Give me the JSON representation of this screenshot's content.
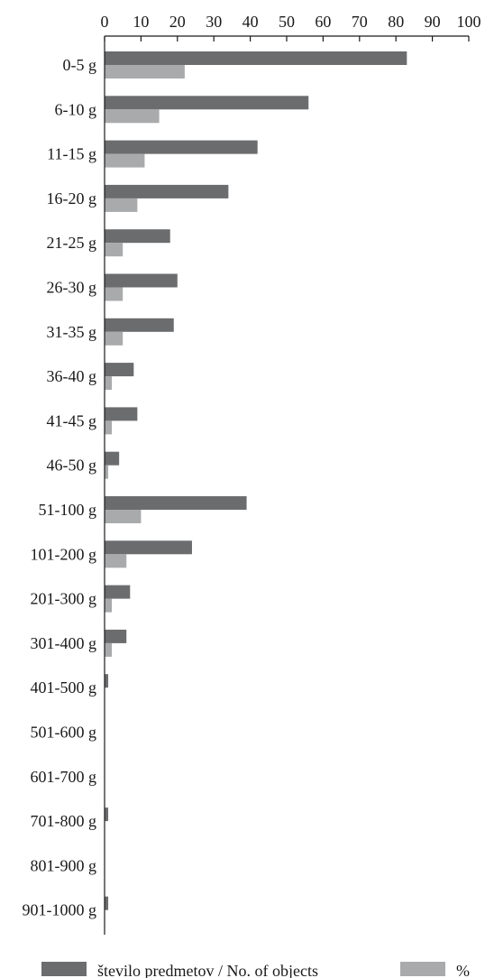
{
  "colors": {
    "series_objects": "#6b6c6e",
    "series_percent": "#a9aaac",
    "axis": "#1a1a1a",
    "text": "#1a1a1a"
  },
  "chart_data": {
    "type": "bar",
    "orientation": "horizontal",
    "grid": false,
    "legend_position": "bottom",
    "xlim": [
      0,
      100
    ],
    "x_ticks": [
      "0",
      "10",
      "20",
      "30",
      "40",
      "50",
      "60",
      "70",
      "80",
      "90",
      "100"
    ],
    "categories": [
      "0-5 g",
      "6-10 g",
      "11-15 g",
      "16-20 g",
      "21-25 g",
      "26-30 g",
      "31-35 g",
      "36-40 g",
      "41-45 g",
      "46-50 g",
      "51-100 g",
      "101-200 g",
      "201-300 g",
      "301-400 g",
      "401-500 g",
      "501-600 g",
      "601-700 g",
      "701-800 g",
      "801-900 g",
      "901-1000 g"
    ],
    "series": [
      {
        "name": "število predmetov / No. of objects",
        "values": [
          83,
          56,
          42,
          34,
          18,
          20,
          19,
          8,
          9,
          4,
          39,
          24,
          7,
          6,
          1,
          0,
          0,
          1,
          0,
          1
        ]
      },
      {
        "name": "%",
        "values": [
          22,
          15,
          11,
          9,
          5,
          5,
          5,
          2,
          2,
          1,
          10,
          6,
          2,
          2,
          0,
          0,
          0,
          0,
          0,
          0
        ]
      }
    ]
  }
}
